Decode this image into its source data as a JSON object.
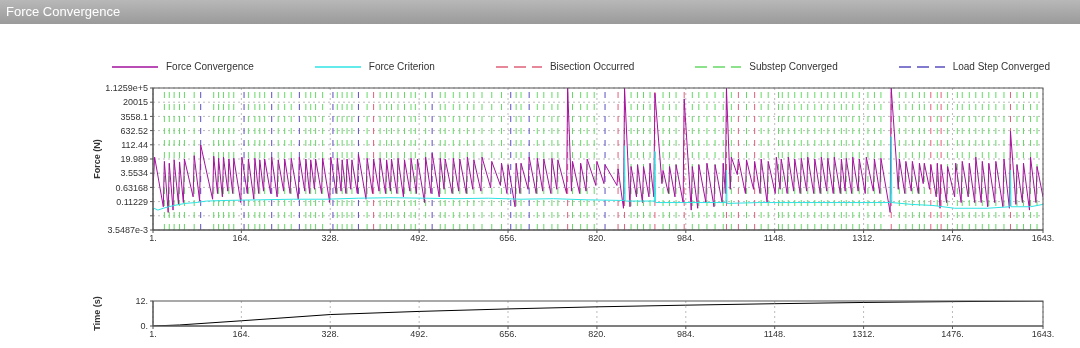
{
  "chart_data": [
    {
      "type": "line",
      "title": "Force Convergence",
      "ylabel": "Force (N)",
      "log": "y",
      "grid": true,
      "legend": "top",
      "xlim": [
        1,
        1643
      ],
      "xticks": [
        {
          "value": 1,
          "label": "1."
        },
        {
          "value": 164,
          "label": "164."
        },
        {
          "value": 328,
          "label": "328."
        },
        {
          "value": 492,
          "label": "492."
        },
        {
          "value": 656,
          "label": "656."
        },
        {
          "value": 820,
          "label": "820."
        },
        {
          "value": 984,
          "label": "984."
        },
        {
          "value": 1148,
          "label": "1148."
        },
        {
          "value": 1312,
          "label": "1312."
        },
        {
          "value": 1476,
          "label": "1476."
        },
        {
          "value": 1643,
          "label": "1643."
        }
      ],
      "ylim": [
        0.0035487,
        112590
      ],
      "yticks": [
        {
          "value": 0.0035487,
          "label": "3.5487e-3"
        },
        {
          "value": 0.019963,
          "label": null
        },
        {
          "value": 0.11229,
          "label": "0.11229"
        },
        {
          "value": 0.63168,
          "label": "0.63168"
        },
        {
          "value": 3.5534,
          "label": "3.5534"
        },
        {
          "value": 19.989,
          "label": "19.989"
        },
        {
          "value": 112.44,
          "label": "112.44"
        },
        {
          "value": 632.52,
          "label": "632.52"
        },
        {
          "value": 3558.1,
          "label": "3558.1"
        },
        {
          "value": 20015,
          "label": "20015"
        },
        {
          "value": 112590,
          "label": "1.1259e+5"
        }
      ],
      "series": [
        {
          "name": "Force Convergence",
          "color": "#a3129c",
          "line_style": "solid",
          "x": [
            1,
            4,
            20,
            22,
            29,
            31,
            38,
            40,
            48,
            50,
            57,
            59,
            75,
            77,
            87,
            89,
            111,
            113,
            120,
            122,
            129,
            131,
            139,
            141,
            148,
            150,
            163,
            165,
            175,
            177,
            187,
            189,
            196,
            198,
            205,
            207,
            218,
            220,
            230,
            232,
            242,
            244,
            254,
            256,
            269,
            271,
            281,
            283,
            290,
            292,
            299,
            301,
            312,
            314,
            327,
            329,
            339,
            341,
            348,
            350,
            357,
            359,
            366,
            368,
            378,
            380,
            394,
            396,
            406,
            408,
            418,
            420,
            430,
            432,
            439,
            441,
            451,
            453,
            463,
            465,
            475,
            477,
            487,
            489,
            502,
            504,
            514,
            516,
            529,
            531,
            538,
            540,
            553,
            555,
            565,
            567,
            579,
            581,
            591,
            593,
            606,
            608,
            624,
            626,
            642,
            644,
            654,
            656,
            669,
            671,
            678,
            680,
            693,
            695,
            708,
            710,
            720,
            722,
            735,
            737,
            746,
            748,
            764,
            766,
            773,
            775,
            788,
            790,
            800,
            802,
            818,
            820,
            833,
            835,
            857,
            859,
            869,
            871,
            881,
            883,
            893,
            895,
            904,
            906,
            916,
            918,
            925,
            927,
            940,
            942,
            952,
            954,
            964,
            966,
            979,
            981,
            994,
            996,
            1006,
            1008,
            1021,
            1023,
            1036,
            1038,
            1051,
            1053,
            1057,
            1059,
            1066,
            1068,
            1079,
            1081,
            1094,
            1096,
            1109,
            1111,
            1121,
            1123,
            1134,
            1136,
            1149,
            1151,
            1158,
            1160,
            1171,
            1173,
            1183,
            1185,
            1195,
            1197,
            1207,
            1209,
            1220,
            1222,
            1232,
            1234,
            1244,
            1246,
            1256,
            1258,
            1269,
            1271,
            1278,
            1280,
            1290,
            1292,
            1302,
            1304,
            1315,
            1317,
            1330,
            1332,
            1342,
            1344,
            1361,
            1363,
            1376,
            1378,
            1388,
            1390,
            1400,
            1402,
            1413,
            1415,
            1422,
            1424,
            1434,
            1436,
            1446,
            1448,
            1453,
            1455,
            1465,
            1467,
            1480,
            1482,
            1492,
            1494,
            1505,
            1507,
            1517,
            1519,
            1529,
            1531,
            1541,
            1543,
            1554,
            1556,
            1569,
            1571,
            1581,
            1583,
            1593,
            1595,
            1605,
            1607,
            1618,
            1620,
            1630,
            1632,
            1643
          ],
          "values": [
            0.6,
            25,
            0.06,
            15,
            0.03,
            12,
            0.04,
            18,
            0.08,
            14,
            0.1,
            20,
            0.2,
            30,
            0.12,
            110,
            0.15,
            28,
            0.3,
            22,
            0.2,
            25,
            0.4,
            20,
            0.3,
            22,
            0.1,
            25,
            0.3,
            20,
            0.15,
            22,
            0.3,
            18,
            0.4,
            20,
            0.3,
            25,
            0.2,
            18,
            0.4,
            20,
            0.3,
            22,
            0.15,
            25,
            0.4,
            20,
            0.3,
            18,
            0.5,
            20,
            0.3,
            22,
            0.1,
            25,
            0.3,
            22,
            0.4,
            18,
            0.3,
            20,
            0.5,
            18,
            0.3,
            35,
            0.15,
            22,
            0.3,
            20,
            0.4,
            22,
            0.3,
            18,
            0.4,
            20,
            0.3,
            22,
            0.2,
            18,
            0.4,
            22,
            0.3,
            20,
            0.1,
            25,
            0.3,
            40,
            0.2,
            22,
            0.5,
            20,
            0.3,
            22,
            0.4,
            20,
            0.3,
            25,
            0.5,
            18,
            0.4,
            25,
            0.6,
            15,
            0.8,
            12,
            0.3,
            10,
            0.06,
            12,
            0.3,
            12,
            0.5,
            25,
            0.3,
            22,
            0.4,
            20,
            0.3,
            22,
            0.5,
            18,
            0.3,
            112590,
            0.4,
            15,
            0.3,
            12,
            0.4,
            20,
            0.8,
            15,
            1,
            10,
            0.8,
            6,
            0.05,
            112590,
            0.06,
            8,
            0.2,
            10,
            0.1,
            8,
            0.2,
            12,
            0.2,
            60000,
            1,
            5,
            0.3,
            8,
            0.2,
            10,
            0.1,
            30000,
            0.04,
            8,
            0.05,
            10,
            0.1,
            12,
            0.06,
            10,
            0.1,
            12,
            0.3,
            112590,
            0.5,
            25,
            3,
            20,
            0.3,
            18,
            0.5,
            15,
            0.3,
            20,
            0.1,
            15,
            0.3,
            25,
            0.5,
            20,
            0.3,
            25,
            0.4,
            20,
            0.3,
            22,
            0.4,
            25,
            0.3,
            20,
            0.3,
            25,
            0.4,
            22,
            0.3,
            25,
            0.3,
            20,
            0.4,
            22,
            0.3,
            25,
            0.4,
            20,
            0.3,
            25,
            0.4,
            20,
            0.3,
            22,
            0.03,
            112590,
            0.5,
            20,
            0.3,
            15,
            0.4,
            15,
            0.3,
            12,
            1,
            12,
            0.5,
            10,
            0.2,
            12,
            0.05,
            10,
            0.1,
            8,
            0.2,
            12,
            0.1,
            15,
            0.2,
            12,
            0.1,
            25,
            0.1,
            15,
            0.06,
            12,
            0.1,
            15,
            0.06,
            20,
            0.05,
            600,
            0.08,
            10,
            0.1,
            12,
            0.04,
            25,
            0.1,
            8,
            0.2
          ]
        },
        {
          "name": "Force Criterion",
          "color": "#2fe3e3",
          "line_style": "solid",
          "x": [
            1,
            3,
            10,
            20,
            30,
            40,
            60,
            80,
            100,
            140,
            200,
            260,
            320,
            380,
            440,
            500,
            560,
            620,
            680,
            740,
            800,
            860,
            870,
            871,
            872,
            900,
            926,
            927,
            928,
            980,
            1040,
            1058,
            1059,
            1060,
            1120,
            1200,
            1280,
            1362,
            1363,
            1364,
            1400,
            1440,
            1480,
            1540,
            1582,
            1583,
            1584,
            1620,
            1643
          ],
          "values": [
            0.04,
            0.05,
            0.04,
            0.05,
            0.06,
            0.07,
            0.09,
            0.1,
            0.12,
            0.13,
            0.14,
            0.15,
            0.15,
            0.17,
            0.18,
            0.17,
            0.16,
            0.17,
            0.15,
            0.16,
            0.14,
            0.13,
            0.13,
            100,
            0.12,
            0.12,
            0.12,
            50,
            0.1,
            0.1,
            0.1,
            0.1,
            5,
            0.09,
            0.1,
            0.1,
            0.1,
            0.1,
            300,
            0.1,
            0.08,
            0.07,
            0.05,
            0.05,
            0.06,
            5,
            0.06,
            0.06,
            0.08
          ]
        }
      ],
      "ref_lines": [
        {
          "axis": "x",
          "value": 408,
          "label": "Bisection Occurred",
          "color": "#e0607a",
          "line_style": "dashed"
        },
        {
          "axis": "x",
          "value": 766,
          "color": "#e0607a",
          "line_style": "dashed"
        },
        {
          "axis": "x",
          "value": 859,
          "color": "#e0607a",
          "line_style": "dashed"
        },
        {
          "axis": "x",
          "value": 871,
          "color": "#e0607a",
          "line_style": "dashed"
        },
        {
          "axis": "x",
          "value": 927,
          "color": "#e0607a",
          "line_style": "dashed"
        },
        {
          "axis": "x",
          "value": 981,
          "color": "#e0607a",
          "line_style": "dashed"
        },
        {
          "axis": "x",
          "value": 1059,
          "color": "#e0607a",
          "line_style": "dashed"
        },
        {
          "axis": "x",
          "value": 1081,
          "color": "#e0607a",
          "line_style": "dashed"
        },
        {
          "axis": "x",
          "value": 1111,
          "color": "#e0607a",
          "line_style": "dashed"
        },
        {
          "axis": "x",
          "value": 1363,
          "color": "#e0607a",
          "line_style": "dashed"
        },
        {
          "axis": "x",
          "value": 1436,
          "color": "#e0607a",
          "line_style": "dashed"
        },
        {
          "axis": "x",
          "value": 1455,
          "color": "#e0607a",
          "line_style": "dashed"
        },
        {
          "axis": "x",
          "value": 1583,
          "color": "#e0607a",
          "line_style": "dashed"
        },
        {
          "axis": "x",
          "value": 22,
          "label": "Substep Converged",
          "color": "#66d966",
          "line_style": "dashed"
        },
        {
          "axis": "x",
          "value": 31,
          "color": "#66d966",
          "line_style": "dashed"
        },
        {
          "axis": "x",
          "value": 40,
          "color": "#66d966",
          "line_style": "dashed"
        },
        {
          "axis": "x",
          "value": 50,
          "color": "#66d966",
          "line_style": "dashed"
        },
        {
          "axis": "x",
          "value": 59,
          "color": "#66d966",
          "line_style": "dashed"
        },
        {
          "axis": "x",
          "value": 77,
          "color": "#66d966",
          "line_style": "dashed"
        },
        {
          "axis": "x",
          "value": 113,
          "color": "#66d966",
          "line_style": "dashed"
        },
        {
          "axis": "x",
          "value": 122,
          "color": "#66d966",
          "line_style": "dashed"
        },
        {
          "axis": "x",
          "value": 131,
          "color": "#66d966",
          "line_style": "dashed"
        },
        {
          "axis": "x",
          "value": 141,
          "color": "#66d966",
          "line_style": "dashed"
        },
        {
          "axis": "x",
          "value": 150,
          "color": "#66d966",
          "line_style": "dashed"
        },
        {
          "axis": "x",
          "value": 177,
          "color": "#66d966",
          "line_style": "dashed"
        },
        {
          "axis": "x",
          "value": 189,
          "color": "#66d966",
          "line_style": "dashed"
        },
        {
          "axis": "x",
          "value": 198,
          "color": "#66d966",
          "line_style": "dashed"
        },
        {
          "axis": "x",
          "value": 207,
          "color": "#66d966",
          "line_style": "dashed"
        },
        {
          "axis": "x",
          "value": 232,
          "color": "#66d966",
          "line_style": "dashed"
        },
        {
          "axis": "x",
          "value": 244,
          "color": "#66d966",
          "line_style": "dashed"
        },
        {
          "axis": "x",
          "value": 256,
          "color": "#66d966",
          "line_style": "dashed"
        },
        {
          "axis": "x",
          "value": 283,
          "color": "#66d966",
          "line_style": "dashed"
        },
        {
          "axis": "x",
          "value": 292,
          "color": "#66d966",
          "line_style": "dashed"
        },
        {
          "axis": "x",
          "value": 301,
          "color": "#66d966",
          "line_style": "dashed"
        },
        {
          "axis": "x",
          "value": 314,
          "color": "#66d966",
          "line_style": "dashed"
        },
        {
          "axis": "x",
          "value": 341,
          "color": "#66d966",
          "line_style": "dashed"
        },
        {
          "axis": "x",
          "value": 350,
          "color": "#66d966",
          "line_style": "dashed"
        },
        {
          "axis": "x",
          "value": 359,
          "color": "#66d966",
          "line_style": "dashed"
        },
        {
          "axis": "x",
          "value": 368,
          "color": "#66d966",
          "line_style": "dashed"
        },
        {
          "axis": "x",
          "value": 396,
          "color": "#66d966",
          "line_style": "dashed"
        },
        {
          "axis": "x",
          "value": 420,
          "color": "#66d966",
          "line_style": "dashed"
        },
        {
          "axis": "x",
          "value": 432,
          "color": "#66d966",
          "line_style": "dashed"
        },
        {
          "axis": "x",
          "value": 441,
          "color": "#66d966",
          "line_style": "dashed"
        },
        {
          "axis": "x",
          "value": 453,
          "color": "#66d966",
          "line_style": "dashed"
        },
        {
          "axis": "x",
          "value": 465,
          "color": "#66d966",
          "line_style": "dashed"
        },
        {
          "axis": "x",
          "value": 477,
          "color": "#66d966",
          "line_style": "dashed"
        },
        {
          "axis": "x",
          "value": 485,
          "color": "#66d966",
          "line_style": "dashed"
        },
        {
          "axis": "x",
          "value": 504,
          "color": "#66d966",
          "line_style": "dashed"
        },
        {
          "axis": "x",
          "value": 531,
          "color": "#66d966",
          "line_style": "dashed"
        },
        {
          "axis": "x",
          "value": 540,
          "color": "#66d966",
          "line_style": "dashed"
        },
        {
          "axis": "x",
          "value": 555,
          "color": "#66d966",
          "line_style": "dashed"
        },
        {
          "axis": "x",
          "value": 567,
          "color": "#66d966",
          "line_style": "dashed"
        },
        {
          "axis": "x",
          "value": 581,
          "color": "#66d966",
          "line_style": "dashed"
        },
        {
          "axis": "x",
          "value": 593,
          "color": "#66d966",
          "line_style": "dashed"
        },
        {
          "axis": "x",
          "value": 608,
          "color": "#66d966",
          "line_style": "dashed"
        },
        {
          "axis": "x",
          "value": 626,
          "color": "#66d966",
          "line_style": "dashed"
        },
        {
          "axis": "x",
          "value": 644,
          "color": "#66d966",
          "line_style": "dashed"
        },
        {
          "axis": "x",
          "value": 671,
          "color": "#66d966",
          "line_style": "dashed"
        },
        {
          "axis": "x",
          "value": 680,
          "color": "#66d966",
          "line_style": "dashed"
        },
        {
          "axis": "x",
          "value": 710,
          "color": "#66d966",
          "line_style": "dashed"
        },
        {
          "axis": "x",
          "value": 722,
          "color": "#66d966",
          "line_style": "dashed"
        },
        {
          "axis": "x",
          "value": 737,
          "color": "#66d966",
          "line_style": "dashed"
        },
        {
          "axis": "x",
          "value": 748,
          "color": "#66d966",
          "line_style": "dashed"
        },
        {
          "axis": "x",
          "value": 775,
          "color": "#66d966",
          "line_style": "dashed"
        },
        {
          "axis": "x",
          "value": 790,
          "color": "#66d966",
          "line_style": "dashed"
        },
        {
          "axis": "x",
          "value": 802,
          "color": "#66d966",
          "line_style": "dashed"
        },
        {
          "axis": "x",
          "value": 815,
          "color": "#66d966",
          "line_style": "dashed"
        },
        {
          "axis": "x",
          "value": 883,
          "color": "#66d966",
          "line_style": "dashed"
        },
        {
          "axis": "x",
          "value": 895,
          "color": "#66d966",
          "line_style": "dashed"
        },
        {
          "axis": "x",
          "value": 906,
          "color": "#66d966",
          "line_style": "dashed"
        },
        {
          "axis": "x",
          "value": 918,
          "color": "#66d966",
          "line_style": "dashed"
        },
        {
          "axis": "x",
          "value": 942,
          "color": "#66d966",
          "line_style": "dashed"
        },
        {
          "axis": "x",
          "value": 954,
          "color": "#66d966",
          "line_style": "dashed"
        },
        {
          "axis": "x",
          "value": 966,
          "color": "#66d966",
          "line_style": "dashed"
        },
        {
          "axis": "x",
          "value": 996,
          "color": "#66d966",
          "line_style": "dashed"
        },
        {
          "axis": "x",
          "value": 1008,
          "color": "#66d966",
          "line_style": "dashed"
        },
        {
          "axis": "x",
          "value": 1023,
          "color": "#66d966",
          "line_style": "dashed"
        },
        {
          "axis": "x",
          "value": 1038,
          "color": "#66d966",
          "line_style": "dashed"
        },
        {
          "axis": "x",
          "value": 1053,
          "color": "#66d966",
          "line_style": "dashed"
        },
        {
          "axis": "x",
          "value": 1068,
          "color": "#66d966",
          "line_style": "dashed"
        },
        {
          "axis": "x",
          "value": 1096,
          "color": "#66d966",
          "line_style": "dashed"
        },
        {
          "axis": "x",
          "value": 1123,
          "color": "#66d966",
          "line_style": "dashed"
        },
        {
          "axis": "x",
          "value": 1136,
          "color": "#66d966",
          "line_style": "dashed"
        },
        {
          "axis": "x",
          "value": 1155,
          "color": "#66d966",
          "line_style": "dashed"
        },
        {
          "axis": "x",
          "value": 1162,
          "color": "#66d966",
          "line_style": "dashed"
        },
        {
          "axis": "x",
          "value": 1173,
          "color": "#66d966",
          "line_style": "dashed"
        },
        {
          "axis": "x",
          "value": 1185,
          "color": "#66d966",
          "line_style": "dashed"
        },
        {
          "axis": "x",
          "value": 1197,
          "color": "#66d966",
          "line_style": "dashed"
        },
        {
          "axis": "x",
          "value": 1209,
          "color": "#66d966",
          "line_style": "dashed"
        },
        {
          "axis": "x",
          "value": 1222,
          "color": "#66d966",
          "line_style": "dashed"
        },
        {
          "axis": "x",
          "value": 1234,
          "color": "#66d966",
          "line_style": "dashed"
        },
        {
          "axis": "x",
          "value": 1246,
          "color": "#66d966",
          "line_style": "dashed"
        },
        {
          "axis": "x",
          "value": 1258,
          "color": "#66d966",
          "line_style": "dashed"
        },
        {
          "axis": "x",
          "value": 1271,
          "color": "#66d966",
          "line_style": "dashed"
        },
        {
          "axis": "x",
          "value": 1280,
          "color": "#66d966",
          "line_style": "dashed"
        },
        {
          "axis": "x",
          "value": 1292,
          "color": "#66d966",
          "line_style": "dashed"
        },
        {
          "axis": "x",
          "value": 1304,
          "color": "#66d966",
          "line_style": "dashed"
        },
        {
          "axis": "x",
          "value": 1320,
          "color": "#66d966",
          "line_style": "dashed"
        },
        {
          "axis": "x",
          "value": 1332,
          "color": "#66d966",
          "line_style": "dashed"
        },
        {
          "axis": "x",
          "value": 1344,
          "color": "#66d966",
          "line_style": "dashed"
        },
        {
          "axis": "x",
          "value": 1378,
          "color": "#66d966",
          "line_style": "dashed"
        },
        {
          "axis": "x",
          "value": 1390,
          "color": "#66d966",
          "line_style": "dashed"
        },
        {
          "axis": "x",
          "value": 1402,
          "color": "#66d966",
          "line_style": "dashed"
        },
        {
          "axis": "x",
          "value": 1415,
          "color": "#66d966",
          "line_style": "dashed"
        },
        {
          "axis": "x",
          "value": 1424,
          "color": "#66d966",
          "line_style": "dashed"
        },
        {
          "axis": "x",
          "value": 1448,
          "color": "#66d966",
          "line_style": "dashed"
        },
        {
          "axis": "x",
          "value": 1467,
          "color": "#66d966",
          "line_style": "dashed"
        },
        {
          "axis": "x",
          "value": 1485,
          "color": "#66d966",
          "line_style": "dashed"
        },
        {
          "axis": "x",
          "value": 1494,
          "color": "#66d966",
          "line_style": "dashed"
        },
        {
          "axis": "x",
          "value": 1507,
          "color": "#66d966",
          "line_style": "dashed"
        },
        {
          "axis": "x",
          "value": 1519,
          "color": "#66d966",
          "line_style": "dashed"
        },
        {
          "axis": "x",
          "value": 1531,
          "color": "#66d966",
          "line_style": "dashed"
        },
        {
          "axis": "x",
          "value": 1543,
          "color": "#66d966",
          "line_style": "dashed"
        },
        {
          "axis": "x",
          "value": 1556,
          "color": "#66d966",
          "line_style": "dashed"
        },
        {
          "axis": "x",
          "value": 1571,
          "color": "#66d966",
          "line_style": "dashed"
        },
        {
          "axis": "x",
          "value": 1595,
          "color": "#66d966",
          "line_style": "dashed"
        },
        {
          "axis": "x",
          "value": 1607,
          "color": "#66d966",
          "line_style": "dashed"
        },
        {
          "axis": "x",
          "value": 1620,
          "color": "#66d966",
          "line_style": "dashed"
        },
        {
          "axis": "x",
          "value": 1632,
          "color": "#66d966",
          "line_style": "dashed"
        },
        {
          "axis": "x",
          "value": 89,
          "label": "Load Step Converged",
          "color": "#5a4fc0",
          "line_style": "dashed"
        },
        {
          "axis": "x",
          "value": 169,
          "color": "#5a4fc0",
          "line_style": "dashed"
        },
        {
          "axis": "x",
          "value": 220,
          "color": "#5a4fc0",
          "line_style": "dashed"
        },
        {
          "axis": "x",
          "value": 271,
          "color": "#5a4fc0",
          "line_style": "dashed"
        },
        {
          "axis": "x",
          "value": 333,
          "color": "#5a4fc0",
          "line_style": "dashed"
        },
        {
          "axis": "x",
          "value": 380,
          "color": "#5a4fc0",
          "line_style": "dashed"
        },
        {
          "axis": "x",
          "value": 516,
          "color": "#5a4fc0",
          "line_style": "dashed"
        },
        {
          "axis": "x",
          "value": 661,
          "color": "#5a4fc0",
          "line_style": "dashed"
        },
        {
          "axis": "x",
          "value": 695,
          "color": "#5a4fc0",
          "line_style": "dashed"
        },
        {
          "axis": "x",
          "value": 835,
          "color": "#5a4fc0",
          "line_style": "dashed"
        }
      ]
    },
    {
      "type": "line",
      "ylabel": "Time (s)",
      "grid": "x",
      "xlim": [
        1,
        1643
      ],
      "xticks": [
        {
          "value": 1,
          "label": "1."
        },
        {
          "value": 164,
          "label": "164."
        },
        {
          "value": 328,
          "label": "328."
        },
        {
          "value": 492,
          "label": "492."
        },
        {
          "value": 656,
          "label": "656."
        },
        {
          "value": 820,
          "label": "820."
        },
        {
          "value": 984,
          "label": "984."
        },
        {
          "value": 1148,
          "label": "1148."
        },
        {
          "value": 1312,
          "label": "1312."
        },
        {
          "value": 1476,
          "label": "1476."
        },
        {
          "value": 1643,
          "label": "1643."
        }
      ],
      "ylim": [
        0,
        12
      ],
      "yticks": [
        {
          "value": 0,
          "label": "0."
        },
        {
          "value": 12,
          "label": "12."
        }
      ],
      "series": [
        {
          "color": "#000000",
          "x": [
            1,
            50,
            164,
            328,
            492,
            656,
            820,
            984,
            1148,
            1312,
            1476,
            1643
          ],
          "values": [
            0,
            0.5,
            2.5,
            5.5,
            7,
            8.2,
            9.2,
            10,
            10.7,
            11.3,
            11.7,
            12
          ]
        }
      ]
    }
  ]
}
